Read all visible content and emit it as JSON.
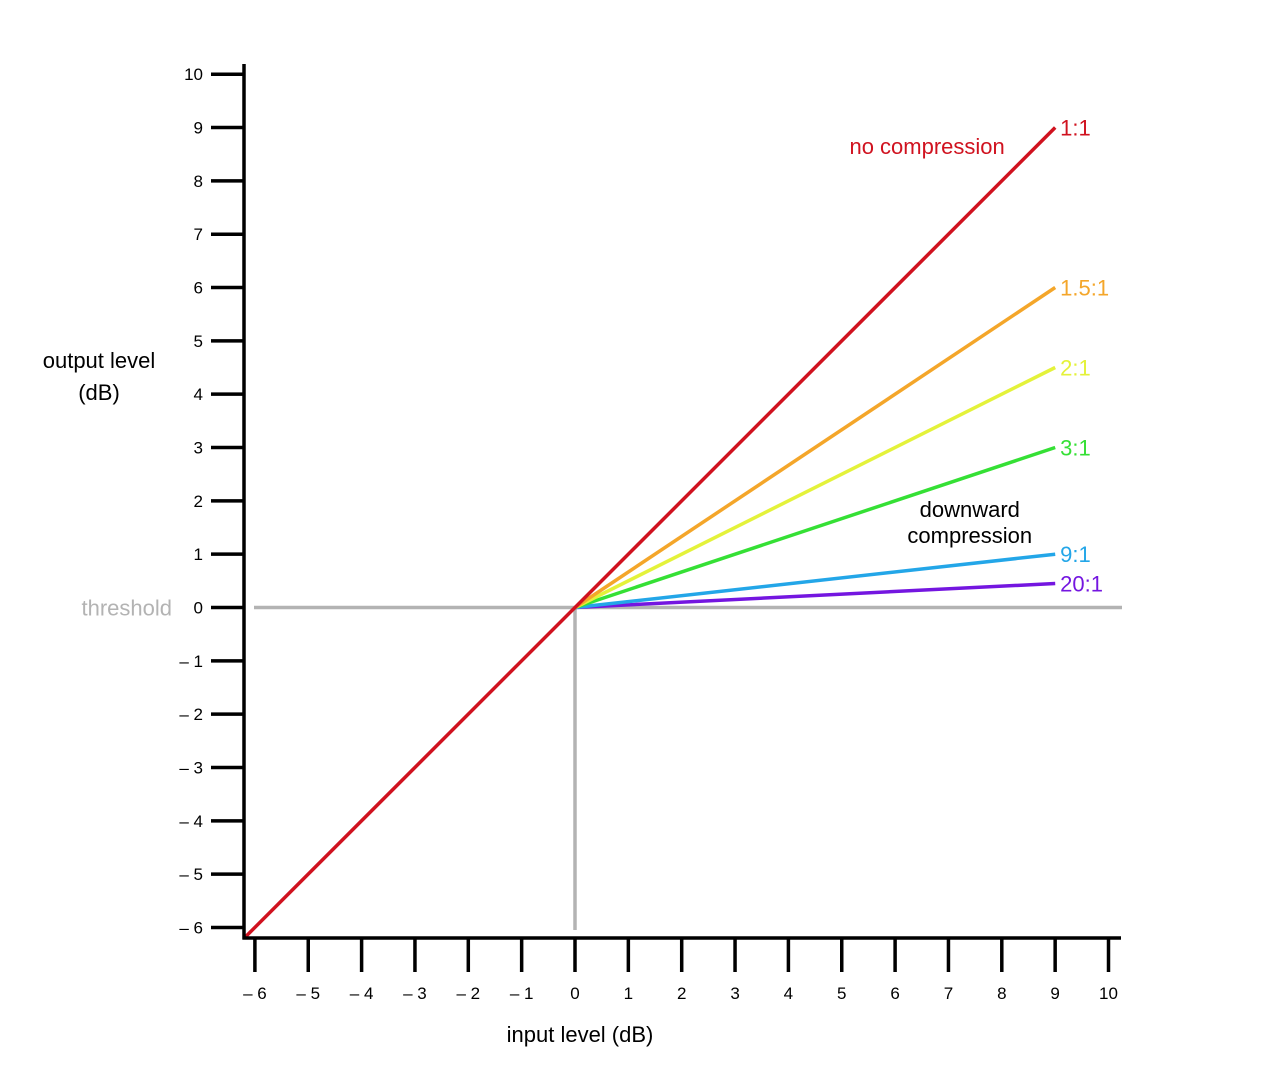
{
  "chart_data": {
    "type": "line",
    "xlabel": "input level (dB)",
    "ylabel_lines": [
      "output level",
      "(dB)"
    ],
    "xlim": [
      -6,
      10
    ],
    "ylim": [
      -6,
      10
    ],
    "x_ticks": [
      -6,
      -5,
      -4,
      -3,
      -2,
      -1,
      0,
      1,
      2,
      3,
      4,
      5,
      6,
      7,
      8,
      9,
      10
    ],
    "y_ticks": [
      -6,
      -5,
      -4,
      -3,
      -2,
      -1,
      0,
      1,
      2,
      3,
      4,
      5,
      6,
      7,
      8,
      9,
      10
    ],
    "x_tick_labels": [
      "– 6",
      "– 5",
      "– 4",
      "– 3",
      "– 2",
      "– 1",
      "0",
      "1",
      "2",
      "3",
      "4",
      "5",
      "6",
      "7",
      "8",
      "9",
      "10"
    ],
    "y_tick_labels": [
      "– 6",
      "– 5",
      "– 4",
      "– 3",
      "– 2",
      "– 1",
      "0",
      "1",
      "2",
      "3",
      "4",
      "5",
      "6",
      "7",
      "8",
      "9",
      "10"
    ],
    "threshold": {
      "label": "threshold",
      "value": 0,
      "color": "#b3b3b3"
    },
    "series": [
      {
        "name": "1:1",
        "ratio": 1,
        "color": "#d0121f",
        "points": [
          [
            -6.2,
            -6.2
          ],
          [
            0,
            0
          ],
          [
            9,
            9
          ]
        ]
      },
      {
        "name": "1.5:1",
        "ratio": 1.5,
        "color": "#f4a62a",
        "points": [
          [
            0,
            0
          ],
          [
            9,
            6
          ]
        ]
      },
      {
        "name": "2:1",
        "ratio": 2,
        "color": "#e4f23a",
        "points": [
          [
            0,
            0
          ],
          [
            9,
            4.5
          ]
        ]
      },
      {
        "name": "3:1",
        "ratio": 3,
        "color": "#35e035",
        "points": [
          [
            0,
            0
          ],
          [
            9,
            3
          ]
        ]
      },
      {
        "name": "9:1",
        "ratio": 9,
        "color": "#23a6e8",
        "points": [
          [
            0,
            0
          ],
          [
            9,
            1
          ]
        ]
      },
      {
        "name": "20:1",
        "ratio": 20,
        "color": "#7416e0",
        "points": [
          [
            0,
            0
          ],
          [
            9,
            0.45
          ]
        ]
      }
    ],
    "annotations": [
      {
        "text_lines": [
          "no compression"
        ],
        "color": "#d0121f",
        "x": 6.6,
        "y": 8.5
      },
      {
        "text_lines": [
          "downward",
          "compression"
        ],
        "color": "#000000",
        "x": 7.4,
        "y": 1.7
      }
    ]
  }
}
